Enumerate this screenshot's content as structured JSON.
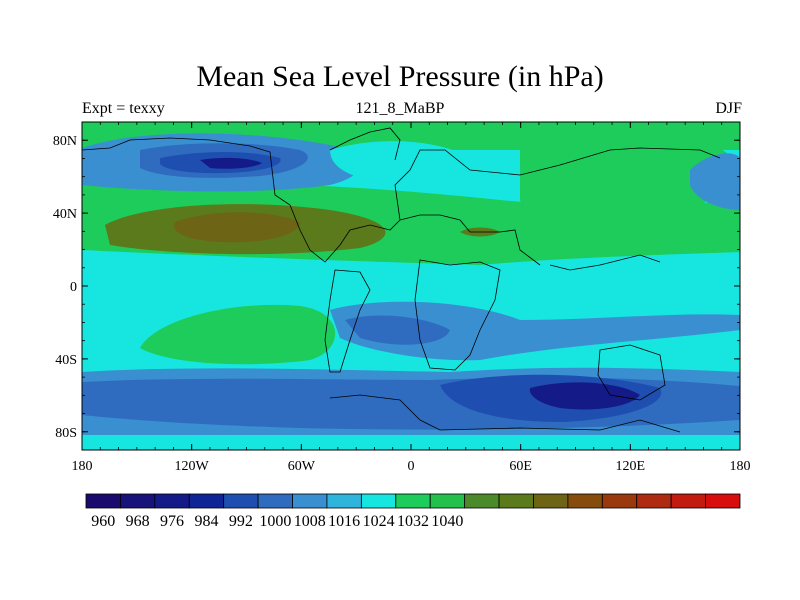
{
  "map": {
    "title": "Mean Sea Level Pressure (in hPa)",
    "left_label": "Expt = texxy",
    "center_label": "121_8_MaBP",
    "right_label": "DJF",
    "variable": "mean sea level pressure",
    "units": "hPa",
    "projection": "cylindrical equidistant",
    "lon_range": [
      -180,
      180
    ],
    "lat_range": [
      -90,
      90
    ],
    "x_ticks": [
      {
        "value": -180,
        "label": "180"
      },
      {
        "value": -120,
        "label": "120W"
      },
      {
        "value": -60,
        "label": "60W"
      },
      {
        "value": 0,
        "label": "0"
      },
      {
        "value": 60,
        "label": "60E"
      },
      {
        "value": 120,
        "label": "120E"
      },
      {
        "value": 180,
        "label": "180"
      }
    ],
    "y_ticks": [
      {
        "value": 80,
        "label": "80N"
      },
      {
        "value": 40,
        "label": "40N"
      },
      {
        "value": 0,
        "label": "0"
      },
      {
        "value": -40,
        "label": "40S"
      },
      {
        "value": -80,
        "label": "80S"
      }
    ]
  },
  "colorbar": {
    "colors": [
      "#1a0a6e",
      "#17137a",
      "#141b88",
      "#0f2596",
      "#1e4fb0",
      "#2f6cc0",
      "#3a8fd0",
      "#2fb4dc",
      "#17e5e0",
      "#1dcc5a",
      "#23c04c",
      "#4a8a2a",
      "#5a7a1c",
      "#6e6416",
      "#864c0e",
      "#9a380e",
      "#ae2a10",
      "#c21c10",
      "#d80e0e"
    ],
    "labels": [
      {
        "index": 1,
        "text": "960"
      },
      {
        "index": 3,
        "text": "968"
      },
      {
        "index": 5,
        "text": "976"
      },
      {
        "index": 7,
        "text": "984"
      },
      {
        "index": 9,
        "text": "992"
      },
      {
        "index": 11,
        "text": "1000"
      },
      {
        "index": 13,
        "text": "1008"
      },
      {
        "index": 15,
        "text": "1016"
      },
      {
        "index": 17,
        "text": "1024"
      },
      {
        "index": 19,
        "text": "1032"
      },
      {
        "index": 21,
        "text": "1040"
      }
    ]
  }
}
